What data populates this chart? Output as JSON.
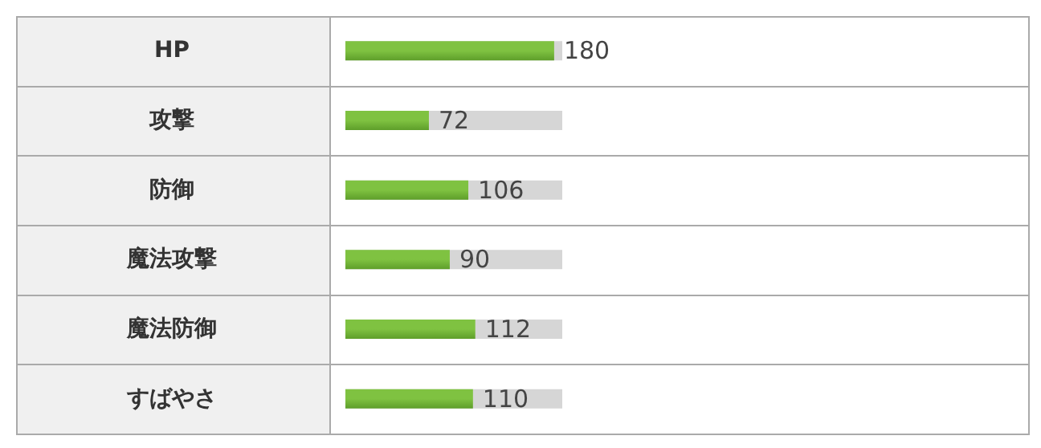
{
  "chart_data": {
    "type": "bar",
    "orientation": "horizontal",
    "categories": [
      "HP",
      "攻撃",
      "防御",
      "魔法攻撃",
      "魔法防御",
      "すばやさ"
    ],
    "values": [
      180,
      72,
      106,
      90,
      112,
      110
    ],
    "color": "#7fc241",
    "xlim": [
      0,
      187
    ],
    "data_labels": true,
    "tick_labels": "y"
  }
}
